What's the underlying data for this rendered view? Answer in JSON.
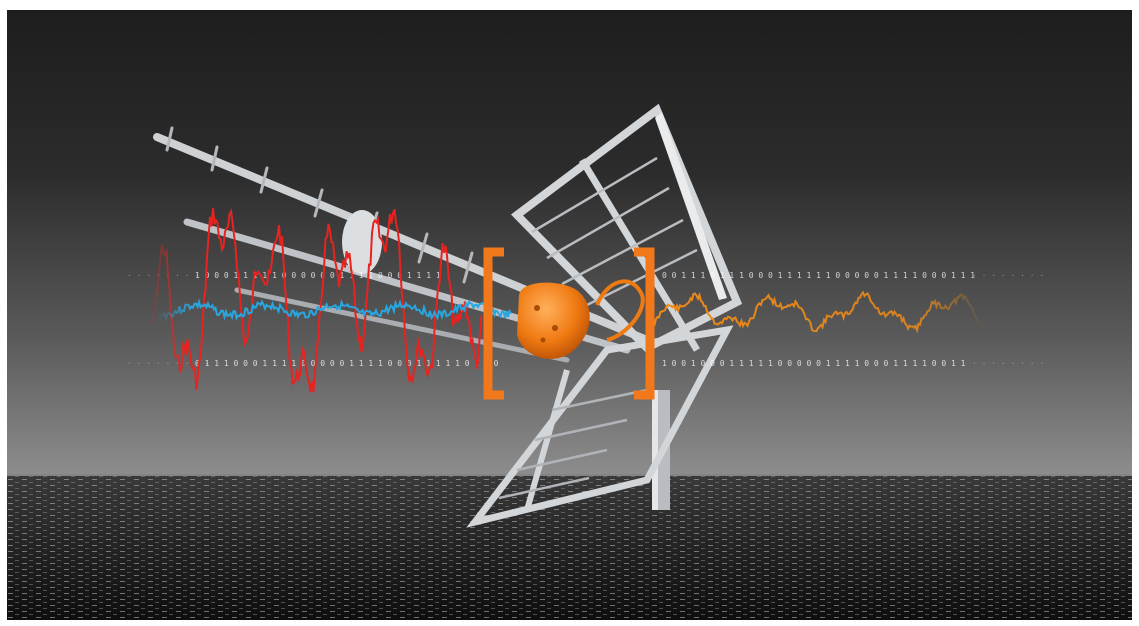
{
  "scene": {
    "kind": "photo-illustration",
    "subject": "antenna-over-sea",
    "colors": {
      "sky_top": "#1f1f1f",
      "sky_bottom": "#8c8c8c",
      "sea": "#1a1a1a",
      "input_wave": "#e8231f",
      "filtered_wave": "#29a6df",
      "output_wave": "#ef8a16",
      "amplifier": "#f07a12",
      "bracket": "#f2781c",
      "antenna": "#d4d6d8"
    }
  },
  "binary_streams": {
    "upper_left": "1 0 0 0 1 1 1 1 1 0 0 0 0 0 0 1 1 1 1 0 0 0 1 1 1 1",
    "upper_right": "0 0 1 1 1 0 1 1 1 0 0 0 1 1 1 1 1 1 0 0 0 0 0 1 1 1 1 0 0 0 1 1 1",
    "lower_left": "0 1 1 1 0 0 0 1 1 1 1 0 0 0 0 0 1 1 1 1 0 0 0 1 1 1 1 1 0 1 1 0",
    "lower_right": "1 0 0 1 0 0 0 1 1 1 1 1 0 0 0 0 0 1 1 1 1 0 0 0 1 1 1 1 0 0 1 1"
  }
}
